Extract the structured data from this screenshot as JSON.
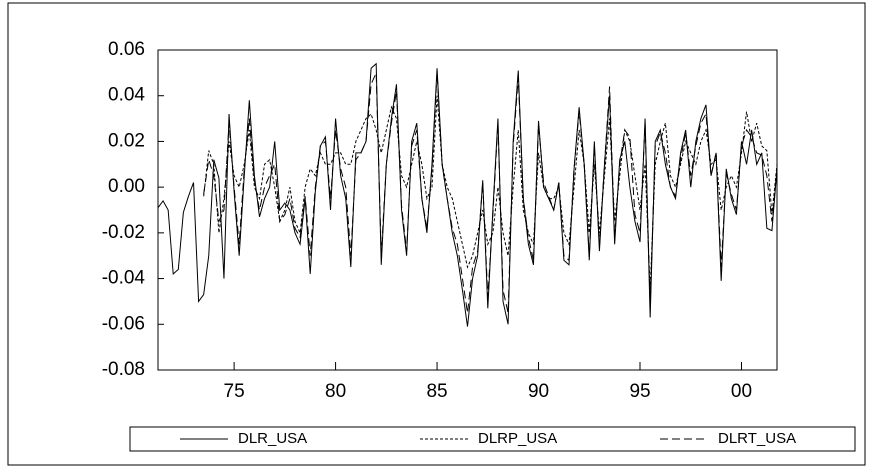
{
  "chart_data": {
    "type": "line",
    "x": [
      1971.25,
      1971.5,
      1971.75,
      1972,
      1972.25,
      1972.5,
      1972.75,
      1973,
      1973.25,
      1973.5,
      1973.75,
      1974,
      1974.25,
      1974.5,
      1974.75,
      1975,
      1975.25,
      1975.5,
      1975.75,
      1976,
      1976.25,
      1976.5,
      1976.75,
      1977,
      1977.25,
      1977.5,
      1977.75,
      1978,
      1978.25,
      1978.5,
      1978.75,
      1979,
      1979.25,
      1979.5,
      1979.75,
      1980,
      1980.25,
      1980.5,
      1980.75,
      1981,
      1981.25,
      1981.5,
      1981.75,
      1982,
      1982.25,
      1982.5,
      1982.75,
      1983,
      1983.25,
      1983.5,
      1983.75,
      1984,
      1984.25,
      1984.5,
      1984.75,
      1985,
      1985.25,
      1985.5,
      1985.75,
      1986,
      1986.25,
      1986.5,
      1986.75,
      1987,
      1987.25,
      1987.5,
      1987.75,
      1988,
      1988.25,
      1988.5,
      1988.75,
      1989,
      1989.25,
      1989.5,
      1989.75,
      1990,
      1990.25,
      1990.5,
      1990.75,
      1991,
      1991.25,
      1991.5,
      1991.75,
      1992,
      1992.25,
      1992.5,
      1992.75,
      1993,
      1993.25,
      1993.5,
      1993.75,
      1994,
      1994.25,
      1994.5,
      1994.75,
      1995,
      1995.25,
      1995.5,
      1995.75,
      1996,
      1996.25,
      1996.5,
      1996.75,
      1997,
      1997.25,
      1997.5,
      1997.75,
      1998,
      1998.25,
      1998.5,
      1998.75,
      1999,
      1999.25,
      1999.5,
      1999.75,
      2000,
      2000.25,
      2000.5,
      2000.75,
      2001,
      2001.25,
      2001.5,
      2001.75
    ],
    "series": [
      {
        "name": "DLR_USA",
        "color": "#000000",
        "dash": "none",
        "values": [
          -0.009,
          -0.006,
          -0.01,
          -0.038,
          -0.036,
          -0.011,
          -0.004,
          0.002,
          -0.05,
          -0.047,
          -0.03,
          0.012,
          0.004,
          -0.04,
          0.032,
          -0.002,
          -0.03,
          0.005,
          0.038,
          0.005,
          -0.013,
          -0.005,
          0.0,
          0.02,
          -0.01,
          -0.007,
          -0.01,
          -0.02,
          -0.025,
          -0.005,
          -0.038,
          -0.002,
          0.018,
          0.022,
          -0.01,
          0.03,
          0.005,
          -0.005,
          -0.035,
          0.015,
          0.015,
          0.02,
          0.052,
          0.054,
          -0.034,
          0.01,
          0.03,
          0.045,
          -0.01,
          -0.03,
          0.02,
          0.028,
          -0.005,
          -0.02,
          0.01,
          0.052,
          0.01,
          -0.005,
          -0.02,
          -0.03,
          -0.045,
          -0.061,
          -0.04,
          -0.03,
          0.003,
          -0.053,
          -0.01,
          0.03,
          -0.05,
          -0.06,
          0.02,
          0.051,
          -0.005,
          -0.025,
          -0.034,
          0.029,
          0.0,
          -0.005,
          -0.01,
          0.002,
          -0.032,
          -0.034,
          0.008,
          0.035,
          0.01,
          -0.032,
          0.02,
          -0.028,
          0.01,
          0.04,
          -0.025,
          0.012,
          0.02,
          0.0,
          -0.015,
          -0.024,
          0.03,
          -0.057,
          0.02,
          0.025,
          0.01,
          0.0,
          -0.005,
          0.015,
          0.025,
          0.0,
          0.02,
          0.03,
          0.036,
          0.005,
          0.015,
          -0.041,
          0.008,
          -0.005,
          -0.012,
          0.02,
          0.01,
          0.025,
          0.01,
          0.015,
          -0.018,
          -0.019,
          0.008
        ]
      },
      {
        "name": "DLRP_USA",
        "color": "#000000",
        "dash": "3,2",
        "values": [
          null,
          null,
          null,
          null,
          null,
          null,
          null,
          null,
          null,
          -0.004,
          0.016,
          0.01,
          -0.02,
          -0.005,
          0.02,
          0.005,
          0.0,
          0.01,
          0.025,
          0.0,
          -0.005,
          0.01,
          0.012,
          0.0,
          -0.015,
          -0.01,
          0.0,
          -0.015,
          -0.02,
          0.0,
          0.008,
          0.005,
          0.015,
          0.01,
          0.01,
          0.015,
          0.015,
          0.01,
          0.01,
          0.02,
          0.025,
          0.03,
          0.032,
          0.025,
          0.015,
          0.025,
          0.035,
          0.03,
          0.005,
          0.0,
          0.01,
          0.02,
          0.01,
          -0.005,
          0.0,
          0.04,
          0.01,
          0.0,
          -0.005,
          -0.015,
          -0.025,
          -0.035,
          -0.03,
          -0.02,
          -0.01,
          -0.025,
          -0.02,
          0.0,
          -0.02,
          -0.03,
          0.0,
          0.025,
          -0.01,
          -0.02,
          -0.025,
          0.015,
          0.0,
          -0.005,
          -0.005,
          0.0,
          -0.02,
          -0.025,
          0.0,
          0.025,
          0.01,
          -0.02,
          0.01,
          -0.02,
          0.005,
          0.03,
          -0.015,
          0.005,
          0.025,
          0.02,
          0.005,
          -0.01,
          0.01,
          -0.045,
          0.01,
          0.02,
          0.028,
          0.005,
          0.0,
          0.01,
          0.02,
          0.015,
          0.01,
          0.02,
          0.025,
          0.01,
          0.012,
          -0.01,
          0.0,
          0.005,
          0.0,
          0.015,
          0.033,
          0.02,
          0.028,
          0.018,
          0.016,
          -0.012,
          0.01
        ]
      },
      {
        "name": "DLRT_USA",
        "color": "#000000",
        "dash": "8,4",
        "values": [
          null,
          null,
          null,
          null,
          null,
          null,
          null,
          null,
          null,
          -0.003,
          0.012,
          0.005,
          -0.015,
          -0.01,
          0.028,
          0.0,
          -0.025,
          0.008,
          0.03,
          0.003,
          -0.01,
          0.0,
          0.005,
          0.01,
          -0.015,
          -0.012,
          -0.005,
          -0.018,
          -0.022,
          -0.004,
          -0.03,
          0.0,
          0.018,
          0.02,
          -0.005,
          0.025,
          0.008,
          0.0,
          -0.03,
          0.012,
          0.015,
          0.02,
          0.045,
          0.05,
          -0.03,
          0.01,
          0.028,
          0.042,
          -0.008,
          -0.028,
          0.018,
          0.025,
          -0.005,
          -0.018,
          0.008,
          0.05,
          0.01,
          -0.005,
          -0.018,
          -0.025,
          -0.04,
          -0.055,
          -0.035,
          -0.028,
          0.002,
          -0.048,
          -0.012,
          0.028,
          -0.045,
          -0.055,
          0.018,
          0.048,
          -0.005,
          -0.022,
          -0.032,
          0.027,
          0.002,
          -0.004,
          -0.01,
          0.002,
          -0.03,
          -0.032,
          0.008,
          0.033,
          0.01,
          -0.03,
          0.018,
          -0.026,
          0.01,
          0.044,
          -0.022,
          0.01,
          0.025,
          0.022,
          -0.012,
          -0.02,
          0.028,
          -0.052,
          0.018,
          0.024,
          0.015,
          0.0,
          -0.004,
          0.012,
          0.024,
          0.005,
          0.018,
          0.028,
          0.032,
          0.005,
          0.015,
          -0.035,
          0.006,
          -0.003,
          -0.01,
          0.018,
          0.025,
          0.022,
          0.015,
          0.014,
          0.005,
          -0.015,
          0.008
        ]
      }
    ],
    "xlim": [
      1971.25,
      2001.75
    ],
    "xticks": [
      {
        "value": 1975,
        "label": "75"
      },
      {
        "value": 1980,
        "label": "80"
      },
      {
        "value": 1985,
        "label": "85"
      },
      {
        "value": 1990,
        "label": "90"
      },
      {
        "value": 1995,
        "label": "95"
      },
      {
        "value": 2000,
        "label": "00"
      }
    ],
    "ylim": [
      -0.08,
      0.06
    ],
    "yticks": [
      {
        "value": -0.08,
        "label": "-0.08"
      },
      {
        "value": -0.06,
        "label": "-0.06"
      },
      {
        "value": -0.04,
        "label": "-0.04"
      },
      {
        "value": -0.02,
        "label": "-0.02"
      },
      {
        "value": 0,
        "label": "0.00"
      },
      {
        "value": 0.02,
        "label": "0.02"
      },
      {
        "value": 0.04,
        "label": "0.04"
      },
      {
        "value": 0.06,
        "label": "0.06"
      }
    ]
  }
}
